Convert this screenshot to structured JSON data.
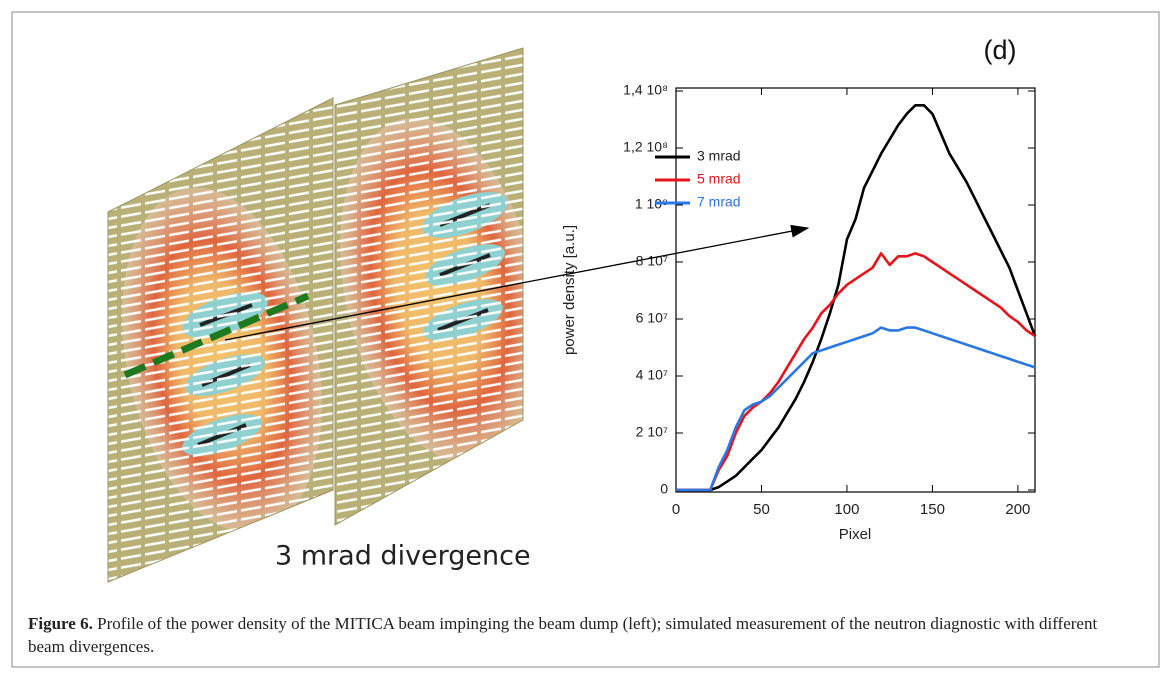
{
  "image_label": "3 mrad divergence",
  "caption": {
    "label": "Figure 6.",
    "text": "Profile of the power density of the MITICA beam impinging the beam dump (left); simulated measurement of the neutron diagnostic with different beam divergences."
  },
  "chart_data": {
    "type": "line",
    "title": "(d)",
    "x_label": "Pixel",
    "y_label": "power density [a.u.]",
    "x": [
      0,
      5,
      10,
      15,
      20,
      25,
      30,
      35,
      40,
      45,
      50,
      55,
      60,
      65,
      70,
      75,
      80,
      85,
      90,
      95,
      100,
      105,
      110,
      115,
      120,
      125,
      130,
      135,
      140,
      145,
      150,
      155,
      160,
      165,
      170,
      175,
      180,
      185,
      190,
      195,
      200,
      205,
      210
    ],
    "series": [
      {
        "name": "3 mrad",
        "color": "#000000",
        "values": [
          0,
          0,
          0,
          0,
          0,
          1000000,
          3000000,
          5000000,
          8000000,
          11000000,
          14000000,
          18000000,
          22000000,
          27000000,
          32000000,
          38000000,
          45000000,
          53000000,
          62000000,
          72000000,
          88000000,
          95000000,
          106000000,
          112000000,
          118000000,
          123000000,
          128000000,
          132000000,
          135000000,
          135000000,
          132000000,
          125000000,
          118000000,
          113000000,
          108000000,
          102000000,
          96000000,
          90000000,
          84000000,
          78000000,
          70000000,
          62000000,
          54000000
        ]
      },
      {
        "name": "5 mrad",
        "color": "#e8141b",
        "values": [
          0,
          0,
          0,
          0,
          0,
          7000000,
          12000000,
          20000000,
          26000000,
          29000000,
          31000000,
          34000000,
          38000000,
          43000000,
          48000000,
          53000000,
          57000000,
          62000000,
          65000000,
          69000000,
          72000000,
          74000000,
          76000000,
          78000000,
          83000000,
          79000000,
          82000000,
          82000000,
          83000000,
          82000000,
          80000000,
          78000000,
          76000000,
          74000000,
          72000000,
          70000000,
          68000000,
          66000000,
          64000000,
          61000000,
          59000000,
          56000000,
          54000000
        ]
      },
      {
        "name": "7 mrad",
        "color": "#2a78e4",
        "values": [
          0,
          0,
          0,
          0,
          0,
          8000000,
          14000000,
          22000000,
          28000000,
          30000000,
          31000000,
          33000000,
          36000000,
          39000000,
          42000000,
          45000000,
          48000000,
          49000000,
          50000000,
          51000000,
          52000000,
          53000000,
          54000000,
          55000000,
          57000000,
          56000000,
          56000000,
          57000000,
          57000000,
          56000000,
          55000000,
          54000000,
          53000000,
          52000000,
          51000000,
          50000000,
          49000000,
          48000000,
          47000000,
          46000000,
          45000000,
          44000000,
          43000000
        ]
      }
    ],
    "xlim": [
      0,
      210
    ],
    "xticks": [
      0,
      50,
      100,
      150,
      200
    ],
    "ylim": [
      0,
      140000000
    ],
    "yticks": [
      0,
      {
        "value": 20000000,
        "label": "2 10⁷"
      },
      {
        "value": 40000000,
        "label": "4 10⁷"
      },
      {
        "value": 60000000,
        "label": "6 10⁷"
      },
      {
        "value": 80000000,
        "label": "8 10⁷"
      },
      {
        "value": 100000000,
        "label": "1 10⁸"
      },
      {
        "value": 120000000,
        "label": "1,2 10⁸"
      },
      {
        "value": 140000000,
        "label": "1,4 10⁸"
      }
    ],
    "legend": "upper left"
  }
}
